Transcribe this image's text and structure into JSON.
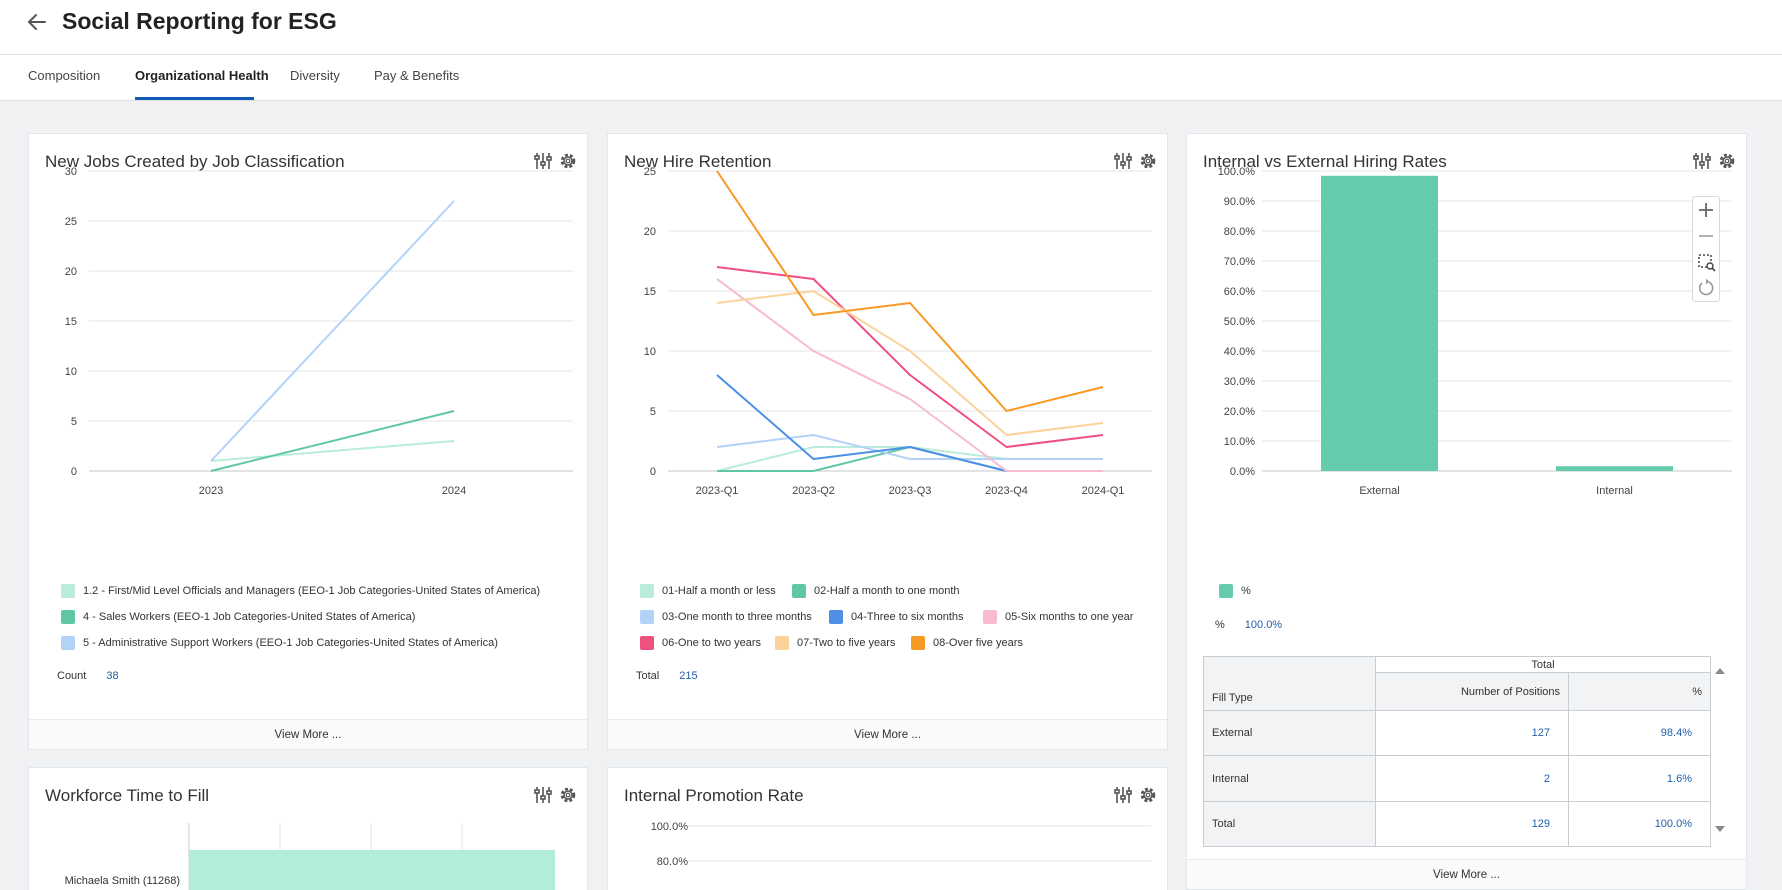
{
  "header": {
    "title": "Social Reporting for ESG"
  },
  "tabs": [
    {
      "label": "Composition"
    },
    {
      "label": "Organizational Health"
    },
    {
      "label": "Diversity"
    },
    {
      "label": "Pay & Benefits"
    }
  ],
  "colors": {
    "accent": "#0e5bb5",
    "teal": "#64cbac",
    "link": "#1f5ea8"
  },
  "view_more_label": "View More ...",
  "cards": {
    "jobs": {
      "title": "New Jobs Created by Job Classification",
      "legend": [
        {
          "label": "1.2 - First/Mid Level Officials and Managers (EEO-1 Job Categories-United States of America)",
          "color": "#b9ecdc"
        },
        {
          "label": "4 - Sales Workers (EEO-1 Job Categories-United States of America)",
          "color": "#5fc8a3"
        },
        {
          "label": "5 - Administrative Support Workers (EEO-1 Job Categories-United States of America)",
          "color": "#b2d3f7"
        }
      ],
      "summary_label": "Count",
      "summary_value": "38"
    },
    "retention": {
      "title": "New Hire Retention",
      "legend": [
        {
          "label": "01-Half a month or less",
          "color": "#b9ecdc"
        },
        {
          "label": "02-Half a month to one month",
          "color": "#5fc8a3"
        },
        {
          "label": "03-One month to three months",
          "color": "#b2d3f7"
        },
        {
          "label": "04-Three to six months",
          "color": "#4e8fe6"
        },
        {
          "label": "05-Six months to one year",
          "color": "#f8b9d3"
        },
        {
          "label": "06-One to two years",
          "color": "#f0507e"
        },
        {
          "label": "07-Two to five years",
          "color": "#fbd39a"
        },
        {
          "label": "08-Over five years",
          "color": "#f79a23"
        }
      ],
      "summary_label": "Total",
      "summary_value": "215"
    },
    "hiring": {
      "title": "Internal vs External Hiring Rates",
      "legend_label": "%",
      "summary_label": "%",
      "summary_value": "100.0%",
      "table": {
        "group_header": "Total",
        "row_header": "Fill Type",
        "col_headers": [
          "Number of Positions",
          "%"
        ],
        "rows": [
          {
            "type": "External",
            "positions": "127",
            "pct": "98.4%"
          },
          {
            "type": "Internal",
            "positions": "2",
            "pct": "1.6%"
          },
          {
            "type": "Total",
            "positions": "129",
            "pct": "100.0%"
          }
        ]
      }
    },
    "ttf": {
      "title": "Workforce Time to Fill",
      "bar_label": "Michaela Smith (11268)"
    },
    "promo": {
      "title": "Internal Promotion Rate",
      "ticks": [
        "100.0%",
        "80.0%"
      ]
    }
  },
  "chart_data": [
    {
      "type": "line",
      "title": "New Jobs Created by Job Classification",
      "categories": [
        "2023",
        "2024"
      ],
      "ylim": [
        0,
        30
      ],
      "yticks": [
        0,
        5,
        10,
        15,
        20,
        25,
        30
      ],
      "series": [
        {
          "name": "1.2 - First/Mid Level Officials and Managers (EEO-1 Job Categories-United States of America)",
          "color": "#b9ecdc",
          "values": [
            1,
            3
          ]
        },
        {
          "name": "4 - Sales Workers (EEO-1 Job Categories-United States of America)",
          "color": "#5fc8a3",
          "values": [
            0,
            6
          ]
        },
        {
          "name": "5 - Administrative Support Workers (EEO-1 Job Categories-United States of America)",
          "color": "#b2d3f7",
          "values": [
            1,
            27
          ]
        }
      ]
    },
    {
      "type": "line",
      "title": "New Hire Retention",
      "categories": [
        "2023-Q1",
        "2023-Q2",
        "2023-Q3",
        "2023-Q4",
        "2024-Q1"
      ],
      "ylim": [
        0,
        25
      ],
      "yticks": [
        0,
        5,
        10,
        15,
        20,
        25
      ],
      "series": [
        {
          "name": "01-Half a month or less",
          "color": "#b9ecdc",
          "values": [
            0,
            2,
            2,
            1,
            1
          ]
        },
        {
          "name": "02-Half a month to one month",
          "color": "#5fc8a3",
          "values": [
            0,
            0,
            2,
            0,
            0
          ]
        },
        {
          "name": "03-One month to three months",
          "color": "#b2d3f7",
          "values": [
            2,
            3,
            1,
            1,
            1
          ]
        },
        {
          "name": "04-Three to six months",
          "color": "#4e8fe6",
          "values": [
            8,
            1,
            2,
            0,
            0
          ]
        },
        {
          "name": "05-Six months to one year",
          "color": "#f8b9d3",
          "values": [
            16,
            10,
            6,
            0,
            0
          ]
        },
        {
          "name": "06-One to two years",
          "color": "#f0507e",
          "values": [
            17,
            16,
            8,
            2,
            3
          ]
        },
        {
          "name": "07-Two to five years",
          "color": "#fbd39a",
          "values": [
            14,
            15,
            10,
            3,
            4
          ]
        },
        {
          "name": "08-Over five years",
          "color": "#f79a23",
          "values": [
            25,
            13,
            14,
            5,
            7
          ]
        }
      ]
    },
    {
      "type": "bar",
      "title": "Internal vs External Hiring Rates",
      "categories": [
        "External",
        "Internal"
      ],
      "series": [
        {
          "name": "%",
          "values": [
            98.4,
            1.6
          ]
        }
      ],
      "ylim": [
        0,
        100
      ],
      "yticks": [
        "0.0%",
        "10.0%",
        "20.0%",
        "30.0%",
        "40.0%",
        "50.0%",
        "60.0%",
        "70.0%",
        "80.0%",
        "90.0%",
        "100.0%"
      ],
      "color": "#64cbac"
    }
  ]
}
